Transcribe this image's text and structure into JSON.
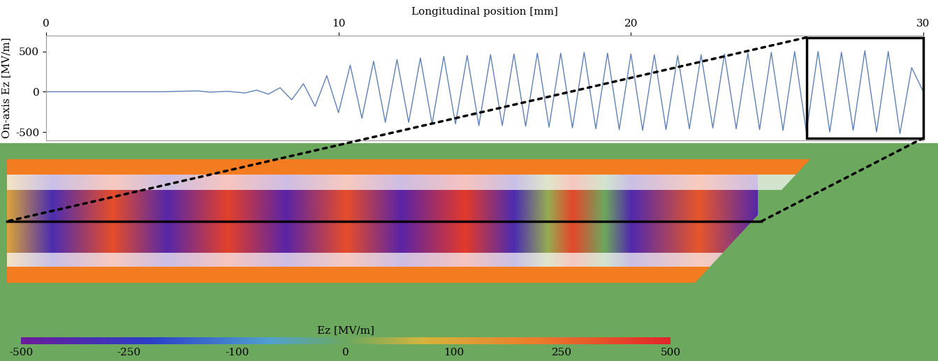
{
  "chart_data": [
    {
      "type": "line",
      "xlabel": "Longitudinal position [mm]",
      "ylabel": "On-axis Ez [MV/m]",
      "color": "#5e81b5",
      "xlim": [
        0,
        30
      ],
      "xticks": [
        0,
        10,
        20,
        30
      ],
      "ylim": [
        -600,
        700
      ],
      "yticks": [
        -500,
        0,
        500
      ],
      "inset_range": [
        26,
        30
      ],
      "x": [
        0,
        2,
        4,
        4.5,
        5.2,
        5.6,
        6.2,
        6.8,
        7.2,
        7.6,
        8.0,
        8.4,
        8.8,
        9.2,
        9.6,
        10.0,
        10.4,
        10.8,
        11.2,
        11.6,
        12.0,
        12.4,
        12.8,
        13.2,
        13.6,
        14.0,
        14.4,
        14.8,
        15.2,
        15.6,
        16.0,
        16.4,
        16.8,
        17.2,
        17.6,
        18.0,
        18.4,
        18.8,
        19.2,
        19.6,
        20.0,
        20.4,
        20.8,
        21.2,
        21.6,
        22.0,
        22.4,
        22.8,
        23.2,
        23.6,
        24.0,
        24.4,
        24.8,
        25.2,
        25.6,
        26.0,
        26.4,
        26.8,
        27.2,
        27.6,
        28.0,
        28.4,
        28.8,
        29.2,
        29.6,
        30.0
      ],
      "values": [
        0,
        0,
        0,
        5,
        10,
        -5,
        5,
        -15,
        20,
        -30,
        50,
        -100,
        100,
        -180,
        200,
        -260,
        330,
        -330,
        380,
        -380,
        400,
        -380,
        420,
        -400,
        440,
        -400,
        450,
        -420,
        460,
        -420,
        470,
        -430,
        480,
        -440,
        480,
        -450,
        490,
        -460,
        480,
        -470,
        470,
        -480,
        460,
        -470,
        450,
        -460,
        460,
        -450,
        470,
        -460,
        480,
        -470,
        490,
        -480,
        500,
        -500,
        500,
        -500,
        490,
        -480,
        510,
        -500,
        500,
        -520,
        300,
        0
      ]
    },
    {
      "type": "field_map",
      "colorbar_label": "Ez [MV/m]",
      "colorbar_range": [
        -500,
        500
      ],
      "colorbar_ticks": [
        -500,
        -250,
        -100,
        0,
        100,
        250,
        500
      ],
      "z": [
        26.0,
        26.24,
        26.56,
        26.85,
        27.17,
        27.48,
        27.8,
        28.09,
        28.43,
        28.69,
        28.87,
        29.0,
        29.17,
        29.31,
        29.67,
        29.98
      ],
      "values": [
        100,
        -350,
        350,
        -400,
        400,
        -420,
        350,
        -420,
        420,
        -350,
        30,
        380,
        0,
        -380,
        320,
        -400
      ]
    }
  ]
}
